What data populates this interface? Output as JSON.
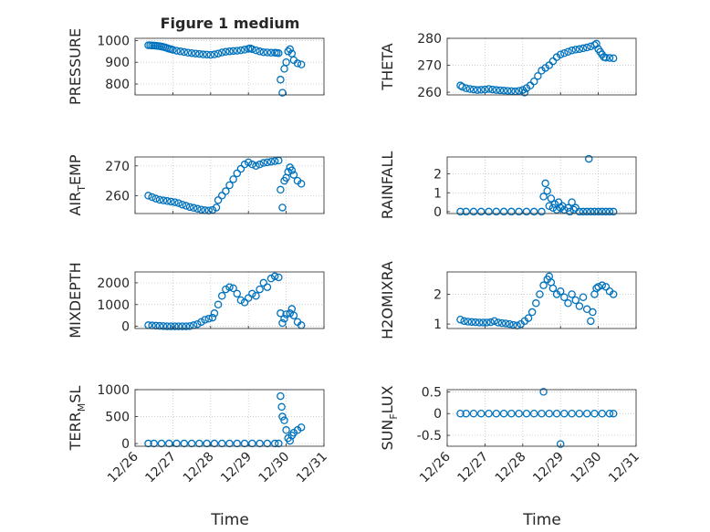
{
  "figure": {
    "title": "Figure 1 medium",
    "xlabel": "Time",
    "x_tick_labels": [
      "12/26",
      "12/27",
      "12/28",
      "12/29",
      "12/30",
      "12/31"
    ]
  },
  "colors": {
    "marker": "#0072BD",
    "axis": "#262626",
    "grid": "#bcbcbc"
  },
  "chart_data": [
    {
      "type": "scatter",
      "ylabel": "PRESSURE",
      "xlim": [
        26,
        31
      ],
      "ylim": [
        750,
        1010
      ],
      "yticks": [
        800,
        900,
        1000
      ],
      "points": [
        [
          26.35,
          978
        ],
        [
          26.4,
          978
        ],
        [
          26.45,
          977
        ],
        [
          26.5,
          977
        ],
        [
          26.55,
          976
        ],
        [
          26.6,
          975
        ],
        [
          26.65,
          974
        ],
        [
          26.7,
          972
        ],
        [
          26.75,
          970
        ],
        [
          26.8,
          968
        ],
        [
          26.85,
          965
        ],
        [
          26.9,
          962
        ],
        [
          26.95,
          960
        ],
        [
          27.0,
          957
        ],
        [
          27.1,
          953
        ],
        [
          27.2,
          950
        ],
        [
          27.3,
          947
        ],
        [
          27.4,
          944
        ],
        [
          27.5,
          942
        ],
        [
          27.6,
          940
        ],
        [
          27.7,
          938
        ],
        [
          27.8,
          936
        ],
        [
          27.9,
          935
        ],
        [
          28.0,
          934
        ],
        [
          28.1,
          936
        ],
        [
          28.2,
          940
        ],
        [
          28.3,
          945
        ],
        [
          28.4,
          948
        ],
        [
          28.5,
          950
        ],
        [
          28.6,
          952
        ],
        [
          28.7,
          953
        ],
        [
          28.8,
          955
        ],
        [
          28.9,
          958
        ],
        [
          29.0,
          962
        ],
        [
          29.05,
          964
        ],
        [
          29.1,
          960
        ],
        [
          29.2,
          955
        ],
        [
          29.3,
          950
        ],
        [
          29.4,
          946
        ],
        [
          29.5,
          945
        ],
        [
          29.6,
          944
        ],
        [
          29.7,
          944
        ],
        [
          29.75,
          943
        ],
        [
          29.8,
          942
        ],
        [
          29.85,
          820
        ],
        [
          29.9,
          760
        ],
        [
          29.95,
          870
        ],
        [
          30.0,
          900
        ],
        [
          30.05,
          950
        ],
        [
          30.1,
          960
        ],
        [
          30.15,
          940
        ],
        [
          30.2,
          910
        ],
        [
          30.3,
          895
        ],
        [
          30.4,
          890
        ]
      ]
    },
    {
      "type": "scatter",
      "ylabel": "THETA",
      "xlim": [
        26,
        31
      ],
      "ylim": [
        259,
        280
      ],
      "yticks": [
        260,
        270,
        280
      ],
      "points": [
        [
          26.35,
          262.5
        ],
        [
          26.4,
          262.0
        ],
        [
          26.5,
          261.5
        ],
        [
          26.6,
          261.2
        ],
        [
          26.7,
          261.0
        ],
        [
          26.8,
          260.8
        ],
        [
          26.9,
          260.9
        ],
        [
          27.0,
          261.0
        ],
        [
          27.1,
          261.2
        ],
        [
          27.2,
          261.0
        ],
        [
          27.3,
          260.8
        ],
        [
          27.4,
          260.7
        ],
        [
          27.5,
          260.6
        ],
        [
          27.6,
          260.5
        ],
        [
          27.7,
          260.4
        ],
        [
          27.8,
          260.3
        ],
        [
          27.9,
          260.5
        ],
        [
          28.0,
          260.8
        ],
        [
          28.05,
          259.9
        ],
        [
          28.1,
          261.5
        ],
        [
          28.2,
          262.5
        ],
        [
          28.3,
          264.0
        ],
        [
          28.4,
          266.0
        ],
        [
          28.5,
          268.0
        ],
        [
          28.6,
          269.0
        ],
        [
          28.7,
          270.0
        ],
        [
          28.8,
          271.5
        ],
        [
          28.9,
          273.0
        ],
        [
          29.0,
          274.0
        ],
        [
          29.1,
          274.5
        ],
        [
          29.2,
          275.0
        ],
        [
          29.3,
          275.5
        ],
        [
          29.4,
          275.8
        ],
        [
          29.5,
          276.0
        ],
        [
          29.6,
          276.3
        ],
        [
          29.7,
          276.6
        ],
        [
          29.8,
          277.0
        ],
        [
          29.9,
          277.5
        ],
        [
          29.95,
          278.0
        ],
        [
          30.0,
          276.0
        ],
        [
          30.05,
          275.0
        ],
        [
          30.1,
          274.0
        ],
        [
          30.15,
          273.0
        ],
        [
          30.2,
          272.8
        ],
        [
          30.3,
          272.7
        ],
        [
          30.4,
          272.6
        ]
      ]
    },
    {
      "type": "scatter",
      "ylabel": "AIR_TEMP",
      "xlim": [
        26,
        31
      ],
      "ylim": [
        254,
        273
      ],
      "yticks": [
        260,
        270
      ],
      "points": [
        [
          26.35,
          260.0
        ],
        [
          26.45,
          259.5
        ],
        [
          26.55,
          259.0
        ],
        [
          26.65,
          258.6
        ],
        [
          26.75,
          258.4
        ],
        [
          26.85,
          258.2
        ],
        [
          26.95,
          258.0
        ],
        [
          27.05,
          257.8
        ],
        [
          27.15,
          257.5
        ],
        [
          27.25,
          257.0
        ],
        [
          27.35,
          256.6
        ],
        [
          27.45,
          256.2
        ],
        [
          27.55,
          255.9
        ],
        [
          27.65,
          255.6
        ],
        [
          27.75,
          255.3
        ],
        [
          27.85,
          255.1
        ],
        [
          27.95,
          255.0
        ],
        [
          28.05,
          255.2
        ],
        [
          28.15,
          256.0
        ],
        [
          28.2,
          258.5
        ],
        [
          28.3,
          260.0
        ],
        [
          28.4,
          261.5
        ],
        [
          28.5,
          263.5
        ],
        [
          28.6,
          265.5
        ],
        [
          28.7,
          267.5
        ],
        [
          28.8,
          269.0
        ],
        [
          28.9,
          270.5
        ],
        [
          29.0,
          271.2
        ],
        [
          29.1,
          270.5
        ],
        [
          29.2,
          270.0
        ],
        [
          29.3,
          270.5
        ],
        [
          29.4,
          271.0
        ],
        [
          29.5,
          271.2
        ],
        [
          29.6,
          271.4
        ],
        [
          29.7,
          271.6
        ],
        [
          29.8,
          271.8
        ],
        [
          29.85,
          262.0
        ],
        [
          29.9,
          256.0
        ],
        [
          29.95,
          265.0
        ],
        [
          30.0,
          266.0
        ],
        [
          30.05,
          268.0
        ],
        [
          30.1,
          269.5
        ],
        [
          30.15,
          268.5
        ],
        [
          30.2,
          267.0
        ],
        [
          30.3,
          265.0
        ],
        [
          30.4,
          264.0
        ]
      ]
    },
    {
      "type": "scatter",
      "ylabel": "RAINFALL",
      "xlim": [
        26,
        31
      ],
      "ylim": [
        -0.1,
        2.9
      ],
      "yticks": [
        0,
        1,
        2
      ],
      "points": [
        [
          26.35,
          0
        ],
        [
          26.5,
          0
        ],
        [
          26.7,
          0
        ],
        [
          26.9,
          0
        ],
        [
          27.1,
          0
        ],
        [
          27.3,
          0
        ],
        [
          27.5,
          0
        ],
        [
          27.7,
          0
        ],
        [
          27.9,
          0
        ],
        [
          28.1,
          0
        ],
        [
          28.3,
          0
        ],
        [
          28.5,
          0
        ],
        [
          28.55,
          0.8
        ],
        [
          28.6,
          1.5
        ],
        [
          28.65,
          1.1
        ],
        [
          28.7,
          0.3
        ],
        [
          28.75,
          0.7
        ],
        [
          28.8,
          0.2
        ],
        [
          28.85,
          0.4
        ],
        [
          28.9,
          0.1
        ],
        [
          28.95,
          0.5
        ],
        [
          29.0,
          0.2
        ],
        [
          29.05,
          0.3
        ],
        [
          29.1,
          0.1
        ],
        [
          29.2,
          0.2
        ],
        [
          29.25,
          0
        ],
        [
          29.3,
          0.5
        ],
        [
          29.35,
          0.1
        ],
        [
          29.4,
          0.2
        ],
        [
          29.5,
          0
        ],
        [
          29.6,
          0
        ],
        [
          29.7,
          0
        ],
        [
          29.75,
          2.8
        ],
        [
          29.8,
          0
        ],
        [
          29.9,
          0
        ],
        [
          30.0,
          0
        ],
        [
          30.1,
          0
        ],
        [
          30.2,
          0
        ],
        [
          30.3,
          0
        ],
        [
          30.4,
          0
        ]
      ]
    },
    {
      "type": "scatter",
      "ylabel": "MIXDEPTH",
      "xlim": [
        26,
        31
      ],
      "ylim": [
        -100,
        2500
      ],
      "yticks": [
        0,
        1000,
        2000
      ],
      "points": [
        [
          26.35,
          50
        ],
        [
          26.45,
          40
        ],
        [
          26.55,
          30
        ],
        [
          26.65,
          20
        ],
        [
          26.75,
          10
        ],
        [
          26.85,
          0
        ],
        [
          26.95,
          0
        ],
        [
          27.05,
          0
        ],
        [
          27.15,
          0
        ],
        [
          27.25,
          0
        ],
        [
          27.35,
          0
        ],
        [
          27.45,
          10
        ],
        [
          27.55,
          50
        ],
        [
          27.65,
          100
        ],
        [
          27.75,
          200
        ],
        [
          27.85,
          300
        ],
        [
          27.95,
          350
        ],
        [
          28.05,
          400
        ],
        [
          28.1,
          600
        ],
        [
          28.2,
          1000
        ],
        [
          28.3,
          1400
        ],
        [
          28.4,
          1700
        ],
        [
          28.5,
          1800
        ],
        [
          28.6,
          1750
        ],
        [
          28.7,
          1500
        ],
        [
          28.8,
          1200
        ],
        [
          28.9,
          1100
        ],
        [
          29.0,
          1300
        ],
        [
          29.1,
          1500
        ],
        [
          29.2,
          1400
        ],
        [
          29.3,
          1700
        ],
        [
          29.4,
          2000
        ],
        [
          29.5,
          1800
        ],
        [
          29.6,
          2200
        ],
        [
          29.7,
          2300
        ],
        [
          29.8,
          2250
        ],
        [
          29.85,
          600
        ],
        [
          29.9,
          150
        ],
        [
          29.95,
          350
        ],
        [
          30.0,
          550
        ],
        [
          30.1,
          600
        ],
        [
          30.15,
          800
        ],
        [
          30.2,
          500
        ],
        [
          30.3,
          200
        ],
        [
          30.4,
          50
        ]
      ]
    },
    {
      "type": "scatter",
      "ylabel": "H2OMIXRA",
      "xlim": [
        26,
        31
      ],
      "ylim": [
        0.85,
        2.75
      ],
      "yticks": [
        1,
        2
      ],
      "points": [
        [
          26.35,
          1.15
        ],
        [
          26.45,
          1.1
        ],
        [
          26.55,
          1.08
        ],
        [
          26.65,
          1.07
        ],
        [
          26.75,
          1.06
        ],
        [
          26.85,
          1.05
        ],
        [
          26.95,
          1.05
        ],
        [
          27.05,
          1.05
        ],
        [
          27.15,
          1.06
        ],
        [
          27.25,
          1.1
        ],
        [
          27.35,
          1.05
        ],
        [
          27.45,
          1.03
        ],
        [
          27.55,
          1.02
        ],
        [
          27.65,
          1.0
        ],
        [
          27.75,
          0.97
        ],
        [
          27.85,
          0.95
        ],
        [
          27.95,
          1.0
        ],
        [
          28.05,
          1.1
        ],
        [
          28.15,
          1.2
        ],
        [
          28.25,
          1.4
        ],
        [
          28.35,
          1.7
        ],
        [
          28.45,
          2.0
        ],
        [
          28.55,
          2.3
        ],
        [
          28.65,
          2.5
        ],
        [
          28.7,
          2.6
        ],
        [
          28.75,
          2.4
        ],
        [
          28.8,
          2.2
        ],
        [
          28.9,
          2.0
        ],
        [
          29.0,
          2.1
        ],
        [
          29.1,
          1.9
        ],
        [
          29.2,
          1.7
        ],
        [
          29.3,
          2.0
        ],
        [
          29.4,
          1.8
        ],
        [
          29.5,
          1.6
        ],
        [
          29.6,
          1.9
        ],
        [
          29.7,
          1.5
        ],
        [
          29.8,
          1.1
        ],
        [
          29.85,
          1.4
        ],
        [
          29.9,
          2.0
        ],
        [
          29.95,
          2.2
        ],
        [
          30.0,
          2.25
        ],
        [
          30.1,
          2.3
        ],
        [
          30.2,
          2.25
        ],
        [
          30.3,
          2.1
        ],
        [
          30.4,
          2.0
        ]
      ]
    },
    {
      "type": "scatter",
      "ylabel": "TERR_MSL",
      "xlim": [
        26,
        31
      ],
      "ylim": [
        -50,
        1000
      ],
      "yticks": [
        0,
        500,
        1000
      ],
      "points": [
        [
          26.35,
          0
        ],
        [
          26.5,
          0
        ],
        [
          26.7,
          0
        ],
        [
          26.9,
          0
        ],
        [
          27.1,
          0
        ],
        [
          27.3,
          0
        ],
        [
          27.5,
          0
        ],
        [
          27.7,
          0
        ],
        [
          27.9,
          0
        ],
        [
          28.1,
          0
        ],
        [
          28.3,
          0
        ],
        [
          28.5,
          0
        ],
        [
          28.7,
          0
        ],
        [
          28.9,
          0
        ],
        [
          29.1,
          0
        ],
        [
          29.3,
          0
        ],
        [
          29.5,
          0
        ],
        [
          29.7,
          0
        ],
        [
          29.8,
          0
        ],
        [
          29.85,
          880
        ],
        [
          29.88,
          680
        ],
        [
          29.9,
          500
        ],
        [
          29.95,
          430
        ],
        [
          30.0,
          250
        ],
        [
          30.05,
          100
        ],
        [
          30.1,
          50
        ],
        [
          30.15,
          150
        ],
        [
          30.2,
          200
        ],
        [
          30.3,
          250
        ],
        [
          30.4,
          300
        ]
      ]
    },
    {
      "type": "scatter",
      "ylabel": "SUN_FLUX",
      "xlim": [
        26,
        31
      ],
      "ylim": [
        -0.75,
        0.55
      ],
      "yticks": [
        -0.5,
        0,
        0.5
      ],
      "points": [
        [
          26.35,
          0
        ],
        [
          26.5,
          0
        ],
        [
          26.7,
          0
        ],
        [
          26.9,
          0
        ],
        [
          27.1,
          0
        ],
        [
          27.3,
          0
        ],
        [
          27.5,
          0
        ],
        [
          27.7,
          0
        ],
        [
          27.9,
          0
        ],
        [
          28.1,
          0
        ],
        [
          28.3,
          0
        ],
        [
          28.5,
          0
        ],
        [
          28.55,
          0.5
        ],
        [
          28.7,
          0
        ],
        [
          28.9,
          0
        ],
        [
          29.0,
          -0.7
        ],
        [
          29.1,
          0
        ],
        [
          29.3,
          0
        ],
        [
          29.5,
          0
        ],
        [
          29.7,
          0
        ],
        [
          29.9,
          0
        ],
        [
          30.1,
          0
        ],
        [
          30.3,
          0
        ],
        [
          30.4,
          0
        ]
      ]
    }
  ]
}
